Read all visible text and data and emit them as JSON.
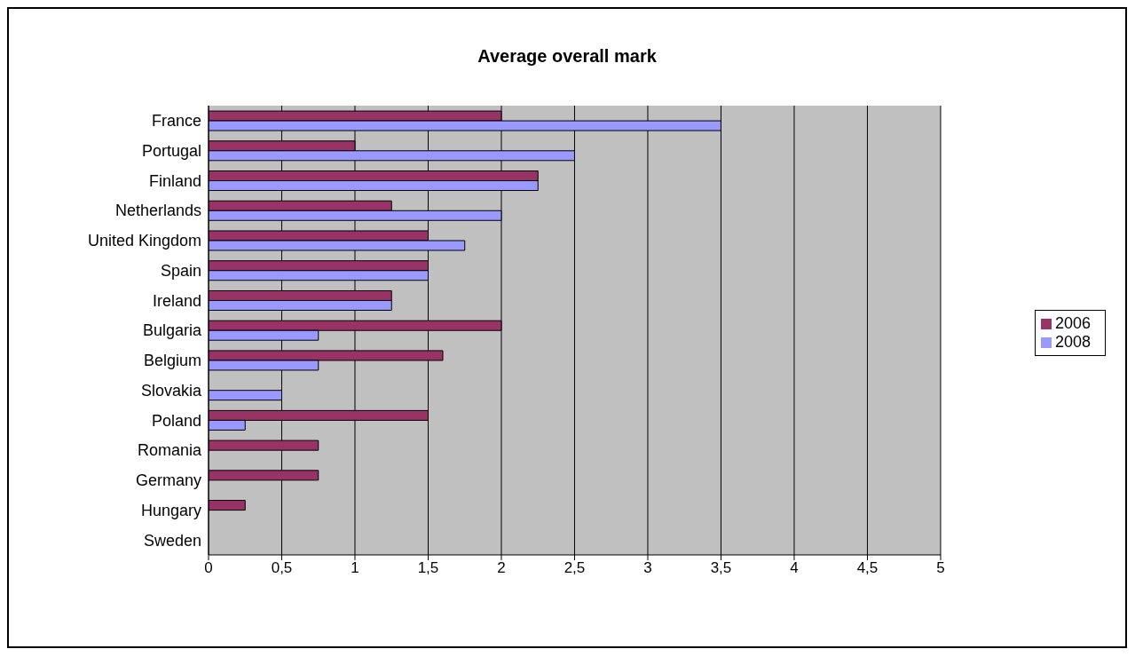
{
  "chart_data": {
    "type": "bar",
    "orientation": "horizontal",
    "title": "Average overall mark",
    "categories": [
      "France",
      "Portugal",
      "Finland",
      "Netherlands",
      "United Kingdom",
      "Spain",
      "Ireland",
      "Bulgaria",
      "Belgium",
      "Slovakia",
      "Poland",
      "Romania",
      "Germany",
      "Hungary",
      "Sweden"
    ],
    "series": [
      {
        "name": "2006",
        "color": "#993366",
        "values": [
          2,
          1,
          2.25,
          1.25,
          1.5,
          1.5,
          1.25,
          2,
          1.6,
          0,
          1.5,
          0.75,
          0.75,
          0.25,
          0
        ]
      },
      {
        "name": "2008",
        "color": "#9999ff",
        "values": [
          3.5,
          2.5,
          2.25,
          2,
          1.75,
          1.5,
          1.25,
          0.75,
          0.75,
          0.5,
          0.25,
          0,
          0,
          0,
          0
        ]
      }
    ],
    "xlim": [
      0,
      5
    ],
    "xticks": [
      0,
      {
        "value": 0.5,
        "label": "0,5"
      },
      1,
      {
        "value": 1.5,
        "label": "1,5"
      },
      2,
      {
        "value": 2.5,
        "label": "2,5"
      },
      3,
      {
        "value": 3.5,
        "label": "3,5"
      },
      4,
      {
        "value": 4.5,
        "label": "4,5"
      },
      5
    ],
    "grid": "x",
    "legend": "right"
  }
}
